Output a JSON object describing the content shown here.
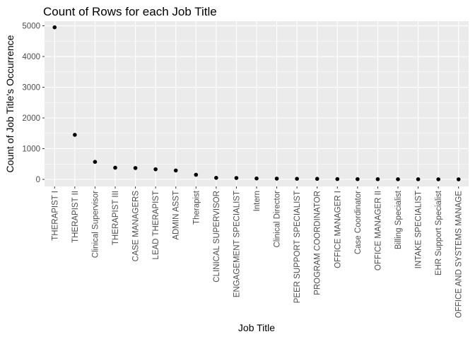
{
  "chart_data": {
    "type": "scatter",
    "title": "Count of Rows for each Job Title",
    "xlabel": "Job Title",
    "ylabel": "Count of Job Title's Occurrence",
    "ylim": [
      -230,
      5150
    ],
    "yticks": [
      0,
      1000,
      2000,
      3000,
      4000,
      5000
    ],
    "grid": true,
    "legend": "none",
    "point_color": "#000000",
    "panel_color": "#ebebeb",
    "categories": [
      "THERAPIST I",
      "THERAPIST II",
      "Clinical Supervisor",
      "THERAPIST III",
      "CASE MANAGERS",
      "LEAD THERAPIST",
      "ADMIN ASST",
      "Therapist",
      "CLINICAL SUPERVISOR",
      "ENGAGEMENT SPECIALIST",
      "Intern",
      "Clinical Director",
      "PEER SUPPORT SPECIALIST",
      "PROGRAM COORDINATOR",
      "OFFICE MANAGER I",
      "Case Coordinator",
      "OFFICE MANAGER II",
      "Billing Specialist",
      "INTAKE SPECIALIST",
      "EHR Support Specialist",
      "OFFICE AND SYSTEMS MANAGE"
    ],
    "values": [
      4950,
      1450,
      570,
      380,
      370,
      330,
      290,
      150,
      50,
      45,
      30,
      25,
      20,
      18,
      10,
      8,
      6,
      5,
      4,
      3,
      2
    ]
  }
}
